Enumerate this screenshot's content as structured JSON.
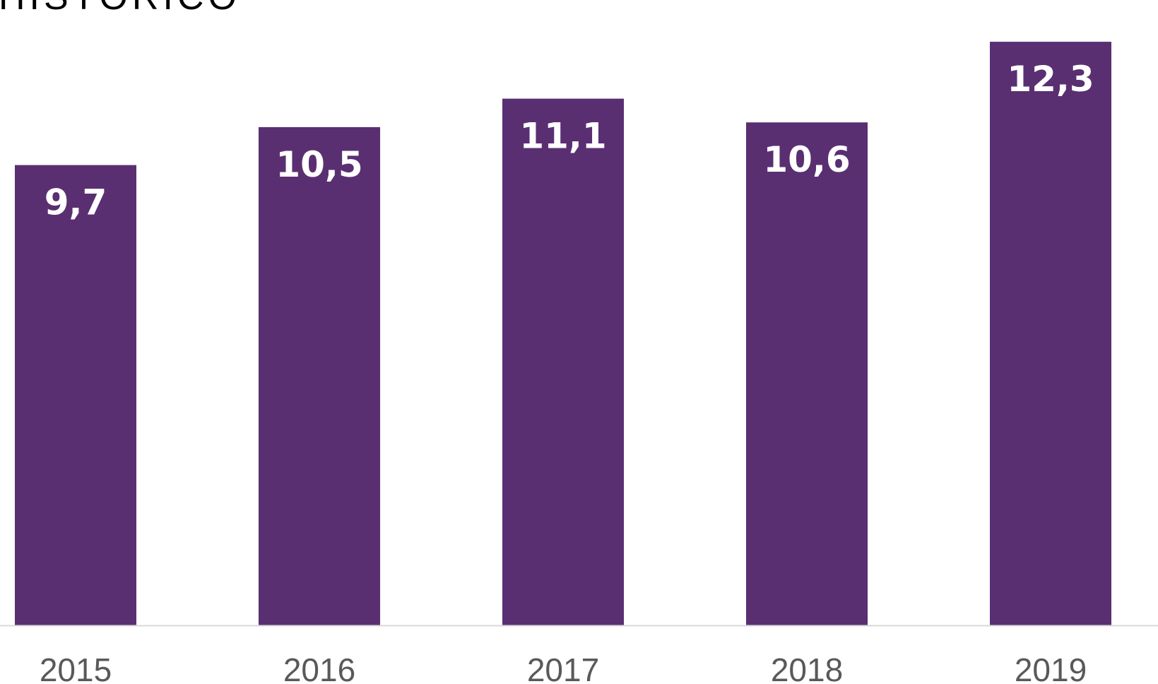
{
  "title": "HISTÓRICO",
  "colors": {
    "bar": "#5a2f72",
    "bar_label": "#ffffff",
    "tick_label": "#595959",
    "axis_line": "#d9d9d9"
  },
  "chart_data": {
    "type": "bar",
    "title": "HISTÓRICO",
    "categories": [
      "2015",
      "2016",
      "2017",
      "2018",
      "2019"
    ],
    "values": [
      9.7,
      10.5,
      11.1,
      10.6,
      12.3
    ],
    "data_labels": [
      "9,7",
      "10,5",
      "11,1",
      "10,6",
      "12,3"
    ],
    "xlabel": "",
    "ylabel": "",
    "ylim": [
      0,
      12.5
    ],
    "grid": false,
    "legend": "none",
    "data_label_position": "inside-top"
  }
}
